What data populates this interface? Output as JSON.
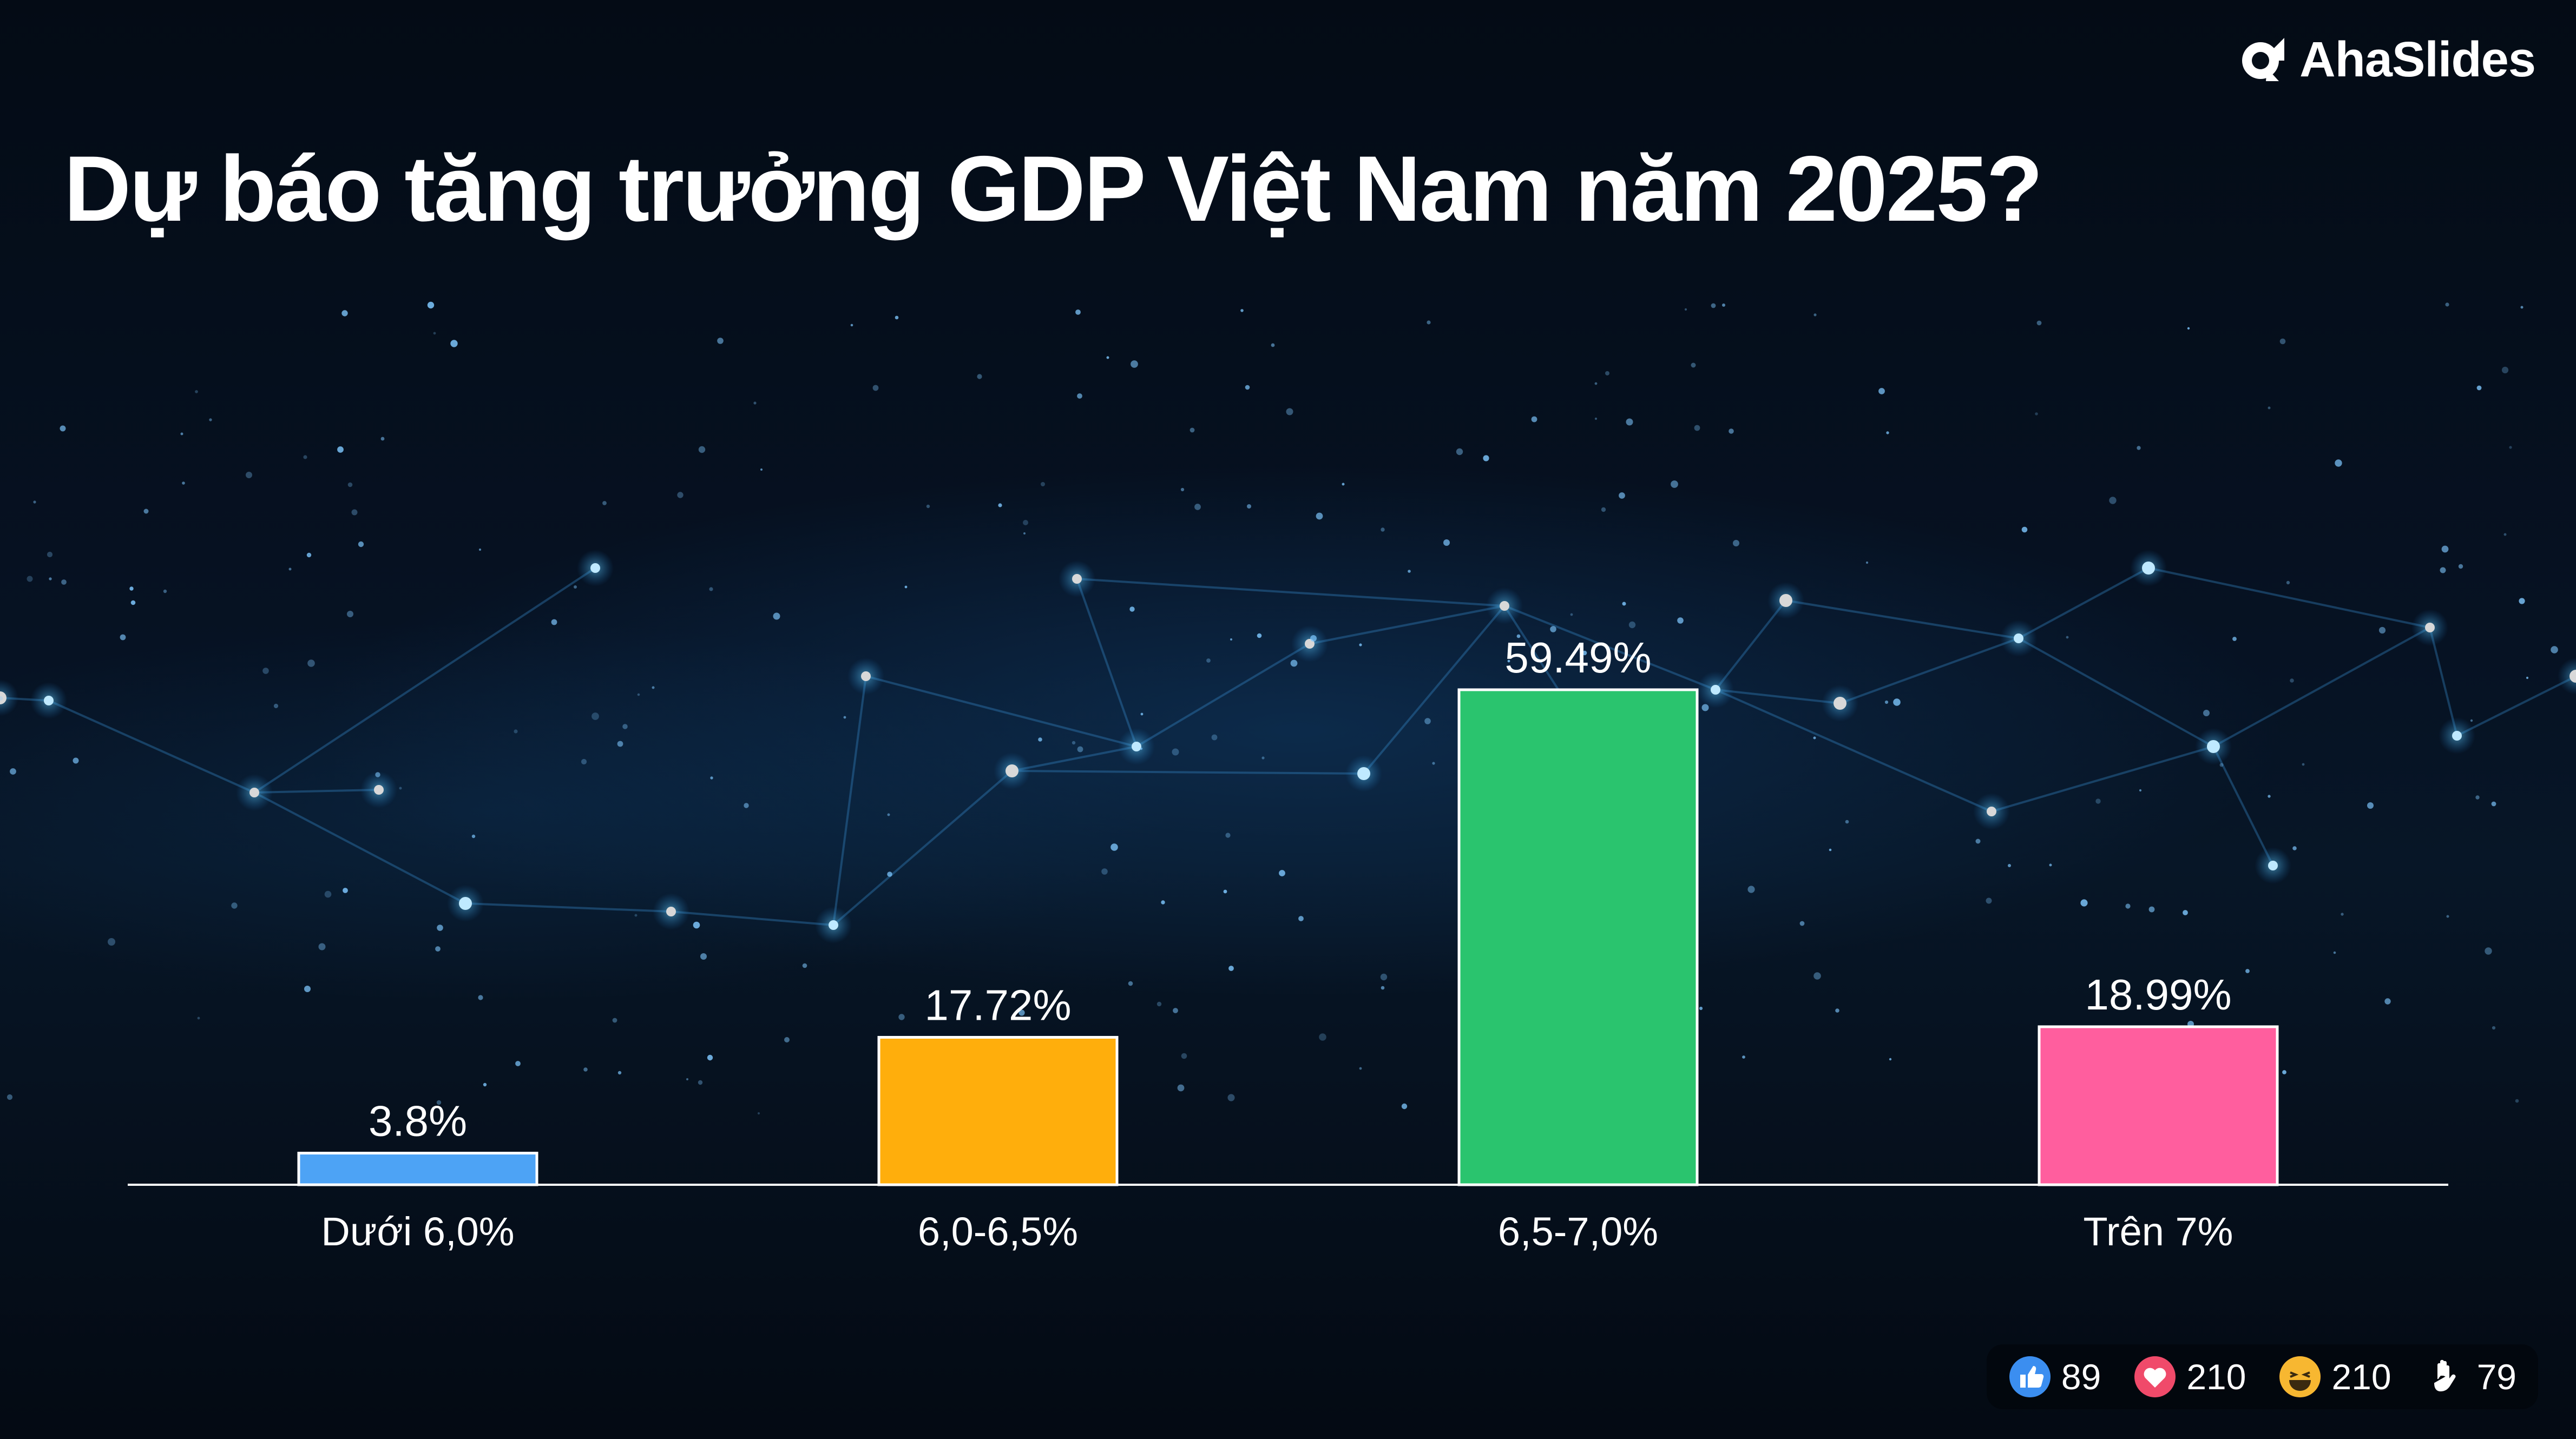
{
  "brand": {
    "name": "AhaSlides"
  },
  "question": {
    "title": "Dự báo tăng trưởng GDP Việt Nam năm 2025?"
  },
  "chart_data": {
    "type": "bar",
    "categories": [
      "Dưới 6,0%",
      "6,0-6,5%",
      "6,5-7,0%",
      "Trên 7%"
    ],
    "values": [
      3.8,
      17.72,
      59.49,
      18.99
    ],
    "value_labels": [
      "3.8%",
      "17.72%",
      "59.49%",
      "18.99%"
    ],
    "colors": [
      "#4da3f5",
      "#ffae0c",
      "#2ac46e",
      "#ff5e9e"
    ],
    "xlabel": "",
    "ylabel": "",
    "ylim": [
      0,
      59.49
    ],
    "grid": false,
    "legend": "none"
  },
  "reactions": [
    {
      "icon": "thumbs-up-icon",
      "count": "89",
      "color": "#3b8ef0"
    },
    {
      "icon": "heart-icon",
      "count": "210",
      "color": "#f04a6a"
    },
    {
      "icon": "laughing-face-icon",
      "count": "210",
      "color": "#f7b731"
    },
    {
      "icon": "raised-hand-icon",
      "count": "79",
      "color": "#ffffff"
    }
  ]
}
